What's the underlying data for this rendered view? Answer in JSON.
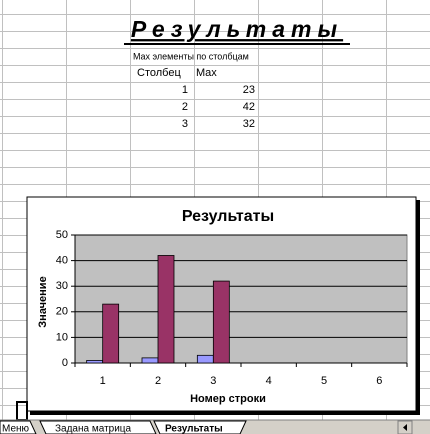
{
  "sheet": {
    "title": "Результаты",
    "subtitle": "Max элементы по столбцам",
    "headers": [
      "Столбец",
      "Max"
    ],
    "rows": [
      [
        1,
        23
      ],
      [
        2,
        42
      ],
      [
        3,
        32
      ]
    ]
  },
  "tabs": [
    "Меню",
    "Задана матрица",
    "Результаты"
  ],
  "chart_data": {
    "type": "bar",
    "title": "Результаты",
    "x_label": "Номер строки",
    "y_label": "Значение",
    "categories": [
      "1",
      "2",
      "3",
      "4",
      "5",
      "6"
    ],
    "series": [
      {
        "color": "#9999ff",
        "values": [
          1,
          2,
          3,
          null,
          null,
          null
        ]
      },
      {
        "color": "#993366",
        "values": [
          23,
          42,
          32,
          null,
          null,
          null
        ]
      }
    ],
    "ylim": [
      0,
      50
    ],
    "yticks": [
      0,
      10,
      20,
      30,
      40,
      50
    ],
    "grid": true
  }
}
